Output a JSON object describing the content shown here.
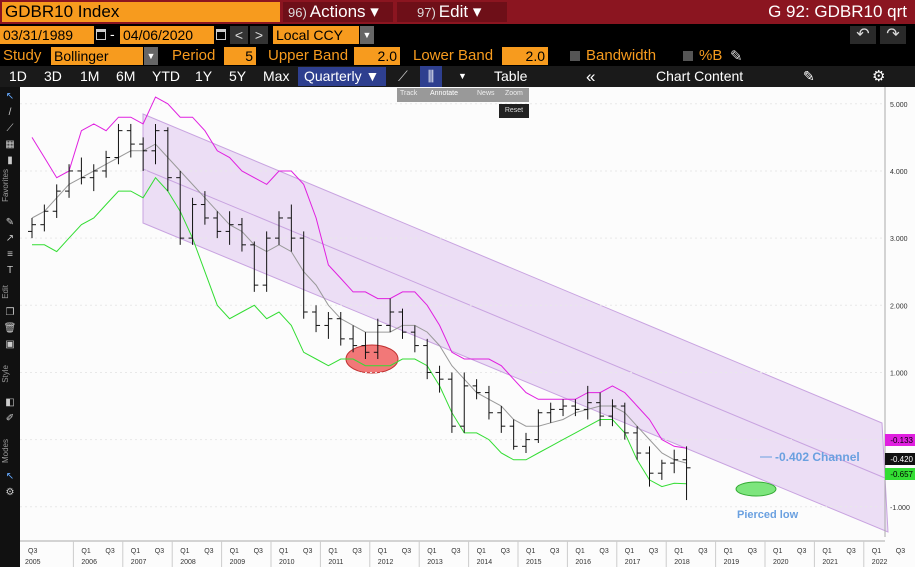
{
  "titlebar": {
    "ticker": "GDBR10 Index",
    "actions_num": "96)",
    "actions_label": "Actions ▾",
    "edit_num": "97)",
    "edit_label": "Edit ▾",
    "window_title": "G 92: GDBR10 qrt"
  },
  "daterow": {
    "start_date": "03/31/1989",
    "separator": "-",
    "end_date": "04/06/2020",
    "prev": "<",
    "next": ">",
    "currency": "Local CCY",
    "undo": "↶",
    "redo": "↷"
  },
  "study": {
    "study_label": "Study",
    "study_value": "Bollinger",
    "period_label": "Period",
    "period_value": "5",
    "upper_label": "Upper Band",
    "upper_value": "2.0",
    "lower_label": "Lower Band",
    "lower_value": "2.0",
    "bandwidth_label": "Bandwidth",
    "pctb_label": "%B"
  },
  "toolbar": {
    "ranges": [
      "1D",
      "3D",
      "1M",
      "6M",
      "YTD",
      "1Y",
      "5Y",
      "Max"
    ],
    "frequency": "Quarterly ▼",
    "table": "Table",
    "collapse": "«",
    "chart_content": "Chart Content"
  },
  "popup": {
    "items": [
      "Track",
      "Annotate",
      "News",
      "Zoom"
    ],
    "reset": "Reset"
  },
  "leftlabels": {
    "favorites": "Favorites",
    "edit": "Edit",
    "style": "Style",
    "modes": "Modes"
  },
  "chart_data": {
    "type": "candlestick",
    "y_ticks": [
      "5.000",
      "4.000",
      "3.000",
      "2.000",
      "1.000",
      "0.000",
      "-1.000"
    ],
    "ylim": [
      -1.45,
      5.25
    ],
    "quarter_labels": [
      "Q3",
      "Q1",
      "Q3"
    ],
    "years": [
      "2005",
      "2006",
      "2007",
      "2008",
      "2009",
      "2010",
      "2011",
      "2012",
      "2013",
      "2014",
      "2015",
      "2016",
      "2017",
      "2018",
      "2019",
      "2020",
      "2021",
      "2022"
    ],
    "last_values": {
      "upper": "-0.133",
      "price": "-0.420",
      "lower": "-0.657"
    },
    "annotations": {
      "channel": "-0.402 Channel",
      "pierced": "Pierced low"
    },
    "colors": {
      "upper_band": "#e020e0",
      "middle_band": "#999999",
      "lower_band": "#33dd33",
      "channel_fill": "#e6d2f2",
      "red_marker": "#f06060",
      "green_marker": "#66e066",
      "annotation": "#6aa0e0"
    },
    "price_ohlc": [
      [
        3.1,
        3.3,
        3.0,
        3.2
      ],
      [
        3.2,
        3.5,
        3.1,
        3.4
      ],
      [
        3.4,
        3.8,
        3.3,
        3.7
      ],
      [
        3.7,
        4.1,
        3.6,
        4.0
      ],
      [
        4.0,
        4.2,
        3.8,
        3.9
      ],
      [
        3.9,
        4.1,
        3.7,
        4.0
      ],
      [
        4.0,
        4.3,
        3.9,
        4.2
      ],
      [
        4.2,
        4.7,
        4.1,
        4.6
      ],
      [
        4.6,
        4.7,
        4.2,
        4.4
      ],
      [
        4.4,
        4.5,
        4.0,
        4.3
      ],
      [
        4.3,
        4.7,
        4.1,
        4.6
      ],
      [
        4.6,
        4.65,
        3.7,
        3.9
      ],
      [
        3.9,
        4.0,
        2.9,
        3.0
      ],
      [
        3.0,
        3.6,
        2.9,
        3.5
      ],
      [
        3.5,
        3.7,
        3.2,
        3.3
      ],
      [
        3.3,
        3.4,
        3.0,
        3.1
      ],
      [
        3.1,
        3.4,
        2.9,
        3.2
      ],
      [
        3.2,
        3.3,
        2.8,
        2.9
      ],
      [
        2.9,
        2.95,
        2.2,
        2.3
      ],
      [
        2.3,
        3.1,
        2.2,
        3.0
      ],
      [
        3.0,
        3.4,
        2.9,
        3.3
      ],
      [
        3.3,
        3.5,
        2.8,
        3.0
      ],
      [
        3.0,
        3.1,
        1.8,
        1.9
      ],
      [
        1.9,
        2.0,
        1.6,
        1.7
      ],
      [
        1.7,
        1.9,
        1.5,
        1.8
      ],
      [
        1.8,
        1.9,
        1.4,
        1.5
      ],
      [
        1.5,
        1.7,
        1.3,
        1.4
      ],
      [
        1.4,
        1.6,
        1.2,
        1.3
      ],
      [
        1.3,
        1.8,
        1.2,
        1.7
      ],
      [
        1.7,
        2.1,
        1.6,
        1.9
      ],
      [
        1.9,
        1.95,
        1.5,
        1.6
      ],
      [
        1.6,
        1.7,
        1.3,
        1.4
      ],
      [
        1.4,
        1.5,
        0.9,
        1.0
      ],
      [
        1.0,
        1.1,
        0.7,
        0.9
      ],
      [
        0.9,
        1.0,
        0.1,
        0.2
      ],
      [
        0.2,
        1.0,
        0.1,
        0.8
      ],
      [
        0.8,
        0.9,
        0.6,
        0.7
      ],
      [
        0.7,
        0.8,
        0.3,
        0.4
      ],
      [
        0.4,
        0.5,
        0.1,
        0.2
      ],
      [
        0.2,
        0.3,
        -0.15,
        -0.1
      ],
      [
        -0.1,
        0.1,
        -0.2,
        0.0
      ],
      [
        0.0,
        0.45,
        -0.05,
        0.4
      ],
      [
        0.4,
        0.55,
        0.25,
        0.45
      ],
      [
        0.45,
        0.6,
        0.35,
        0.5
      ],
      [
        0.5,
        0.6,
        0.35,
        0.45
      ],
      [
        0.45,
        0.8,
        0.3,
        0.55
      ],
      [
        0.55,
        0.7,
        0.2,
        0.35
      ],
      [
        0.35,
        0.6,
        0.2,
        0.5
      ],
      [
        0.5,
        0.55,
        0.0,
        0.1
      ],
      [
        0.1,
        0.2,
        -0.3,
        -0.2
      ],
      [
        -0.2,
        -0.1,
        -0.7,
        -0.5
      ],
      [
        -0.5,
        -0.3,
        -0.6,
        -0.35
      ],
      [
        -0.35,
        -0.15,
        -0.5,
        -0.3
      ],
      [
        -0.3,
        -0.1,
        -0.9,
        -0.42
      ]
    ],
    "upper_band": [
      4.5,
      4.2,
      3.9,
      4.0,
      4.6,
      4.7,
      4.6,
      4.8,
      4.8,
      4.7,
      5.1,
      5.0,
      4.8,
      4.8,
      4.6,
      4.3,
      4.2,
      4.0,
      3.9,
      3.8,
      4.0,
      4.0,
      3.8,
      3.3,
      2.6,
      2.4,
      2.2,
      2.2,
      2.1,
      2.1,
      2.2,
      2.2,
      2.0,
      1.7,
      1.3,
      1.2,
      1.2,
      1.2,
      1.1,
      0.9,
      0.7,
      0.6,
      0.6,
      0.6,
      0.6,
      0.7,
      0.7,
      0.8,
      0.7,
      0.5,
      0.3,
      0.0,
      -0.1,
      -0.13
    ],
    "middle_band": [
      3.3,
      3.4,
      3.6,
      3.8,
      3.9,
      4.0,
      4.1,
      4.2,
      4.3,
      4.3,
      4.4,
      4.2,
      4.0,
      3.8,
      3.6,
      3.4,
      3.2,
      3.1,
      2.9,
      2.8,
      2.9,
      2.8,
      2.5,
      2.3,
      2.0,
      1.8,
      1.7,
      1.6,
      1.6,
      1.6,
      1.7,
      1.7,
      1.6,
      1.4,
      1.1,
      0.9,
      0.7,
      0.6,
      0.5,
      0.3,
      0.2,
      0.2,
      0.25,
      0.3,
      0.4,
      0.45,
      0.5,
      0.5,
      0.4,
      0.2,
      0.0,
      -0.2,
      -0.3,
      -0.35
    ],
    "lower_band": [
      2.9,
      2.9,
      2.8,
      3.0,
      3.2,
      3.3,
      3.5,
      3.7,
      3.7,
      3.6,
      3.9,
      3.7,
      3.4,
      3.0,
      2.5,
      2.0,
      1.8,
      1.9,
      2.0,
      1.8,
      1.9,
      1.7,
      1.3,
      1.2,
      1.1,
      1.2,
      1.2,
      1.1,
      1.1,
      1.1,
      1.2,
      1.2,
      1.1,
      0.8,
      0.4,
      0.1,
      0.1,
      0.0,
      -0.2,
      -0.3,
      -0.3,
      -0.2,
      -0.1,
      0.0,
      0.1,
      0.2,
      0.3,
      0.3,
      0.1,
      -0.3,
      -0.6,
      -0.7,
      -0.65,
      -0.657
    ]
  }
}
